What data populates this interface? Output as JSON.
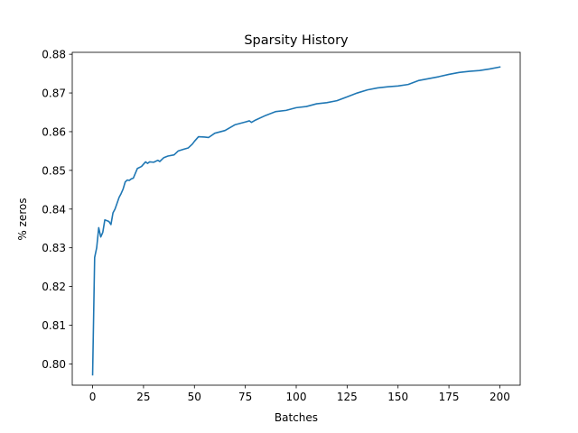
{
  "chart_data": {
    "type": "line",
    "title": "Sparsity History",
    "xlabel": "Batches",
    "ylabel": "% zeros",
    "xlim": [
      -10,
      210
    ],
    "ylim": [
      0.7945,
      0.8805
    ],
    "xticks": [
      0,
      25,
      50,
      75,
      100,
      125,
      150,
      175,
      200
    ],
    "xtick_labels": [
      "0",
      "25",
      "50",
      "75",
      "100",
      "125",
      "150",
      "175",
      "200"
    ],
    "yticks": [
      0.8,
      0.81,
      0.82,
      0.83,
      0.84,
      0.85,
      0.86,
      0.87,
      0.88
    ],
    "ytick_labels": [
      "0.80",
      "0.81",
      "0.82",
      "0.83",
      "0.84",
      "0.85",
      "0.86",
      "0.87",
      "0.88"
    ],
    "grid": false,
    "legend": "none",
    "color": "#1f77b4",
    "series": [
      {
        "x": [
          0,
          1,
          2,
          3,
          4,
          5,
          6,
          7,
          8,
          9,
          10,
          11,
          12,
          13,
          14,
          15,
          16,
          17,
          18,
          19,
          20,
          22,
          24,
          26,
          27,
          28,
          30,
          32,
          33,
          34,
          35,
          37,
          40,
          42,
          45,
          47,
          49,
          50,
          52,
          55,
          57,
          60,
          65,
          68,
          70,
          75,
          77,
          78,
          80,
          85,
          90,
          95,
          100,
          105,
          110,
          115,
          120,
          125,
          130,
          135,
          140,
          145,
          150,
          155,
          160,
          165,
          170,
          175,
          180,
          185,
          190,
          195,
          200
        ],
        "y": [
          0.7972,
          0.8275,
          0.83,
          0.8352,
          0.8328,
          0.834,
          0.8372,
          0.837,
          0.8368,
          0.836,
          0.839,
          0.84,
          0.8415,
          0.843,
          0.844,
          0.8452,
          0.847,
          0.8475,
          0.8474,
          0.8478,
          0.848,
          0.8505,
          0.851,
          0.8522,
          0.8518,
          0.8522,
          0.8521,
          0.8526,
          0.8523,
          0.8528,
          0.8533,
          0.8537,
          0.854,
          0.855,
          0.8555,
          0.8558,
          0.8568,
          0.8575,
          0.8587,
          0.8586,
          0.8585,
          0.8596,
          0.8603,
          0.8612,
          0.8618,
          0.8625,
          0.8628,
          0.8624,
          0.863,
          0.8642,
          0.8652,
          0.8655,
          0.8662,
          0.8665,
          0.8672,
          0.8675,
          0.868,
          0.869,
          0.87,
          0.8708,
          0.8713,
          0.8716,
          0.8718,
          0.8722,
          0.8732,
          0.8737,
          0.8742,
          0.8748,
          0.8753,
          0.8756,
          0.8758,
          0.8762,
          0.8767
        ]
      }
    ]
  }
}
